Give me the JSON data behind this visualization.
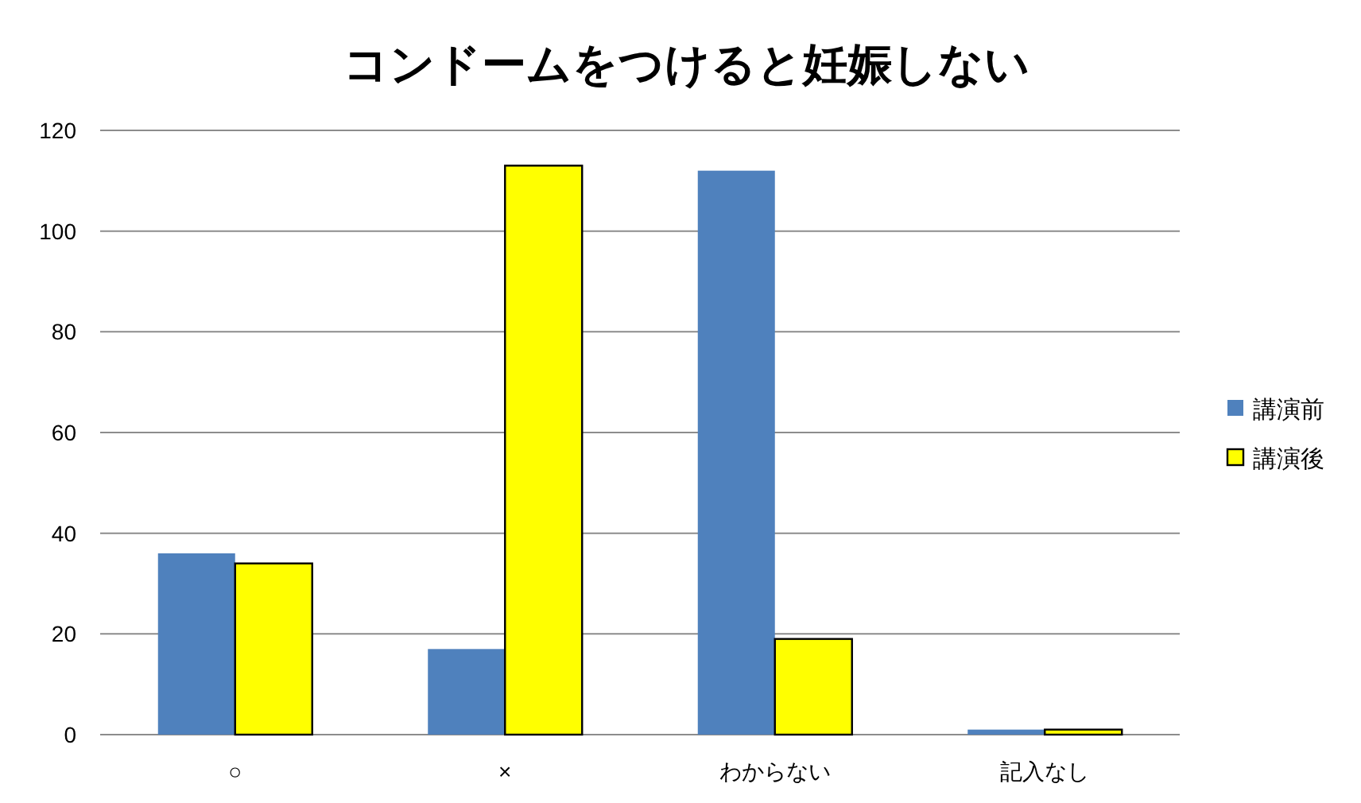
{
  "chart_data": {
    "type": "bar",
    "title": "コンドームをつけると妊娠しない",
    "categories": [
      "○",
      "×",
      "わからない",
      "記入なし"
    ],
    "series": [
      {
        "name": "講演前",
        "color": "#4f81bd",
        "values": [
          36,
          17,
          112,
          1
        ]
      },
      {
        "name": "講演後",
        "color": "#ffff00",
        "values": [
          34,
          113,
          19,
          1
        ]
      }
    ],
    "ylim": [
      0,
      120
    ],
    "yticks": [
      0,
      20,
      40,
      60,
      80,
      100,
      120
    ],
    "grid": "y",
    "legend": "right"
  }
}
